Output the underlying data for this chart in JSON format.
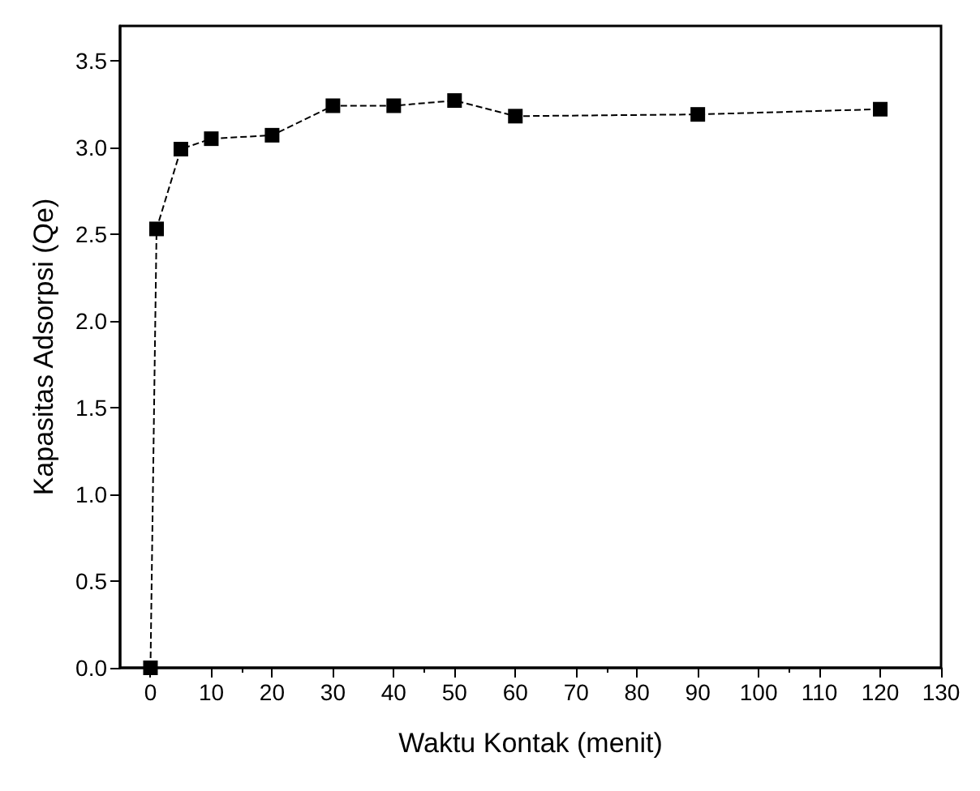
{
  "chart_data": {
    "type": "line",
    "xlabel": "Waktu Kontak (menit)",
    "ylabel": "Kapasitas Adsorpsi (Qe)",
    "x": [
      0,
      1,
      5,
      10,
      20,
      30,
      40,
      50,
      60,
      90,
      120
    ],
    "series": [
      {
        "color": "#000000",
        "values": [
          0,
          2.53,
          2.99,
          3.05,
          3.07,
          3.24,
          3.24,
          3.27,
          3.18,
          3.19,
          3.22
        ]
      }
    ],
    "xlim": [
      -5,
      130
    ],
    "xticks": [
      0,
      10,
      20,
      30,
      40,
      50,
      60,
      70,
      80,
      90,
      100,
      110,
      120,
      130
    ],
    "ylim": [
      0,
      3.7
    ],
    "yticks": [
      {
        "value": 0,
        "label": "0.0"
      },
      0.5,
      {
        "value": 1,
        "label": "1.0"
      },
      1.5,
      {
        "value": 2,
        "label": "2.0"
      },
      2.5,
      {
        "value": 3,
        "label": "3.0"
      },
      3.5
    ],
    "grid": false,
    "marker": "square",
    "line_style": "dashed"
  }
}
